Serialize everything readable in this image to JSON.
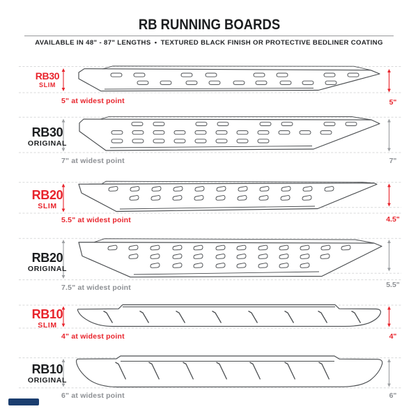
{
  "colors": {
    "accent_red": "#e8242c",
    "ink": "#1c1e20",
    "gray_arrow": "#9b9ea1",
    "gray_text": "#8d9094",
    "dash_gray": "#d8d9da",
    "outline_gray": "#4a4d50",
    "logo_navy": "#1b3e6f"
  },
  "header": {
    "title": "RB RUNNING BOARDS",
    "subtitle": "AVAILABLE IN 48\" - 87\" LENGTHS • TEXTURED BLACK FINISH OR PROTECTIVE BEDLINER COATING"
  },
  "rows": [
    {
      "model": "RB30",
      "variant": "SLIM",
      "finish": "slim",
      "widest": "5\" at widest point",
      "end_height": "5\""
    },
    {
      "model": "RB30",
      "variant": "ORIGINAL",
      "finish": "original",
      "widest": "7\" at widest point",
      "end_height": "7\""
    },
    {
      "model": "RB20",
      "variant": "SLIM",
      "finish": "slim",
      "widest": "5.5\" at widest point",
      "end_height": "4.5\""
    },
    {
      "model": "RB20",
      "variant": "ORIGINAL",
      "finish": "original",
      "widest": "7.5\" at widest point",
      "end_height": "5.5\""
    },
    {
      "model": "RB10",
      "variant": "SLIM",
      "finish": "slim",
      "widest": "4\" at widest point",
      "end_height": "4\""
    },
    {
      "model": "RB10",
      "variant": "ORIGINAL",
      "finish": "original",
      "widest": "6\" at widest point",
      "end_height": "6\""
    }
  ]
}
